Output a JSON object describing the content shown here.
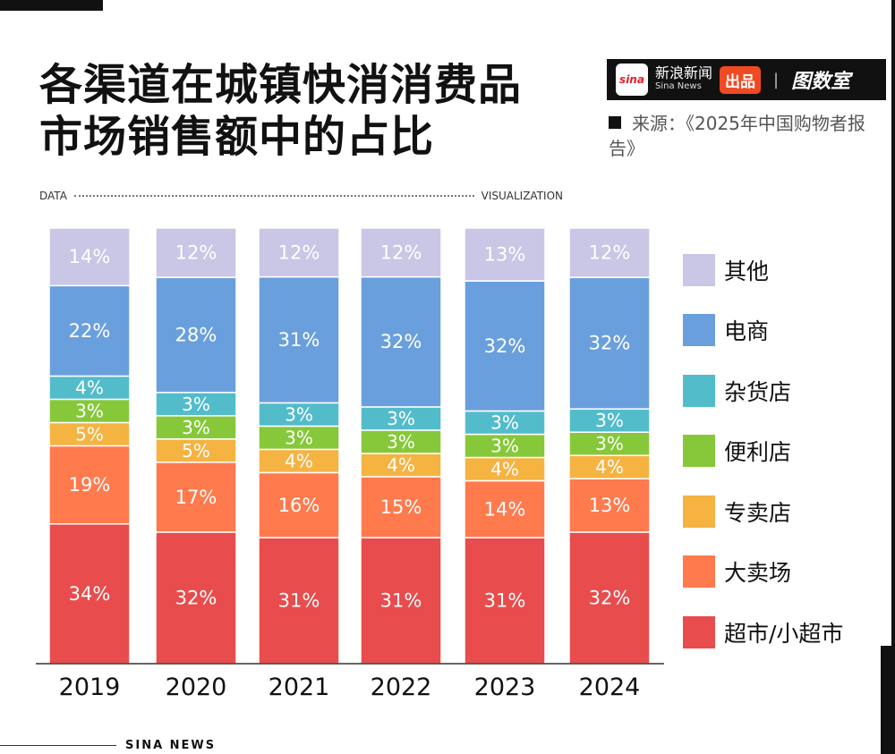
{
  "title_lines": [
    "各渠道在城镇快消消费品",
    "市场销售额中的占比"
  ],
  "brand": {
    "sina_logo": "sina",
    "sina_cn": "新浪新闻",
    "sina_en": "Sina News",
    "badge": "出品",
    "separator": "|",
    "tushu": "图数室"
  },
  "source": "来源：《2025年中国购物者报告》",
  "data_label": "DATA",
  "visualization_label": "VISUALIZATION",
  "footer": "SINA NEWS",
  "chart_data": {
    "type": "bar",
    "stacked": true,
    "categories": [
      "2019",
      "2020",
      "2021",
      "2022",
      "2023",
      "2024"
    ],
    "series": [
      {
        "name": "超市/小超市",
        "color": "#e84c4c",
        "values": [
          34,
          32,
          31,
          31,
          31,
          32
        ]
      },
      {
        "name": "大卖场",
        "color": "#ff7a4d",
        "values": [
          19,
          17,
          16,
          15,
          14,
          13
        ]
      },
      {
        "name": "专卖店",
        "color": "#f5b342",
        "values": [
          5,
          5,
          4,
          4,
          4,
          4
        ]
      },
      {
        "name": "便利店",
        "color": "#86c83a",
        "values": [
          3,
          3,
          3,
          3,
          3,
          3
        ]
      },
      {
        "name": "杂货店",
        "color": "#53bccb",
        "values": [
          4,
          3,
          3,
          3,
          3,
          3
        ]
      },
      {
        "name": "电商",
        "color": "#6a9fdd",
        "values": [
          22,
          28,
          31,
          32,
          32,
          32
        ]
      },
      {
        "name": "其他",
        "color": "#c9c6e6",
        "values": [
          14,
          12,
          12,
          12,
          13,
          12
        ]
      }
    ],
    "unit": "%",
    "legend_position": "right",
    "grid": false
  }
}
